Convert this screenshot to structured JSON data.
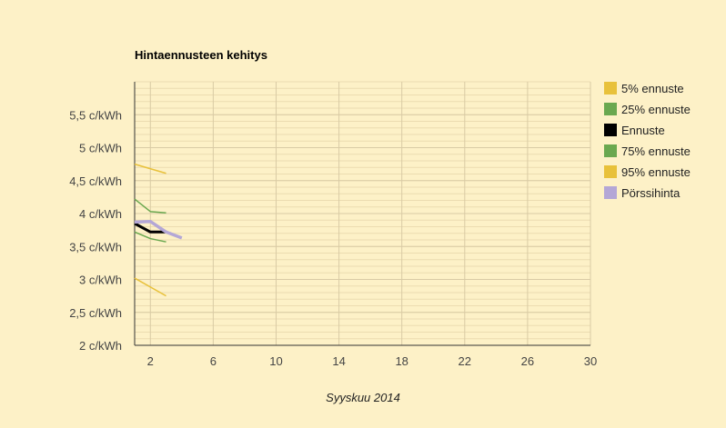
{
  "chart_data": {
    "type": "line",
    "title": "Hintaennusteen kehitys",
    "xlabel": "Syyskuu 2014",
    "ylabel": "",
    "xlim": [
      1,
      30
    ],
    "ylim": [
      2,
      6
    ],
    "x_ticks": [
      2,
      6,
      10,
      14,
      18,
      22,
      26,
      30
    ],
    "y_ticks": [
      {
        "value": 2,
        "label": "2 c/kWh"
      },
      {
        "value": 2.5,
        "label": "2,5 c/kWh"
      },
      {
        "value": 3,
        "label": "3 c/kWh"
      },
      {
        "value": 3.5,
        "label": "3,5 c/kWh"
      },
      {
        "value": 4,
        "label": "4 c/kWh"
      },
      {
        "value": 4.5,
        "label": "4,5 c/kWh"
      },
      {
        "value": 5,
        "label": "5 c/kWh"
      },
      {
        "value": 5.5,
        "label": "5,5 c/kWh"
      }
    ],
    "grid": true,
    "legend_position": "right",
    "series": [
      {
        "name": "5% ennuste",
        "color": "#e8c13a",
        "width": 1.5,
        "x": [
          1,
          3
        ],
        "y": [
          3.02,
          2.75
        ]
      },
      {
        "name": "25% ennuste",
        "color": "#6aa84f",
        "width": 1.5,
        "x": [
          1,
          2,
          3
        ],
        "y": [
          3.72,
          3.62,
          3.57
        ]
      },
      {
        "name": "Ennuste",
        "color": "#000000",
        "width": 3,
        "x": [
          1,
          2,
          3
        ],
        "y": [
          3.85,
          3.72,
          3.72
        ]
      },
      {
        "name": "75% ennuste",
        "color": "#6aa84f",
        "width": 1.5,
        "x": [
          1,
          2,
          3
        ],
        "y": [
          4.22,
          4.03,
          4.01
        ]
      },
      {
        "name": "95% ennuste",
        "color": "#e8c13a",
        "width": 1.5,
        "x": [
          1,
          3
        ],
        "y": [
          4.75,
          4.61
        ]
      },
      {
        "name": "Pörssihinta",
        "color": "#b4a7d6",
        "width": 3.5,
        "x": [
          1,
          2,
          3,
          4
        ],
        "y": [
          3.87,
          3.88,
          3.72,
          3.63
        ]
      }
    ]
  }
}
